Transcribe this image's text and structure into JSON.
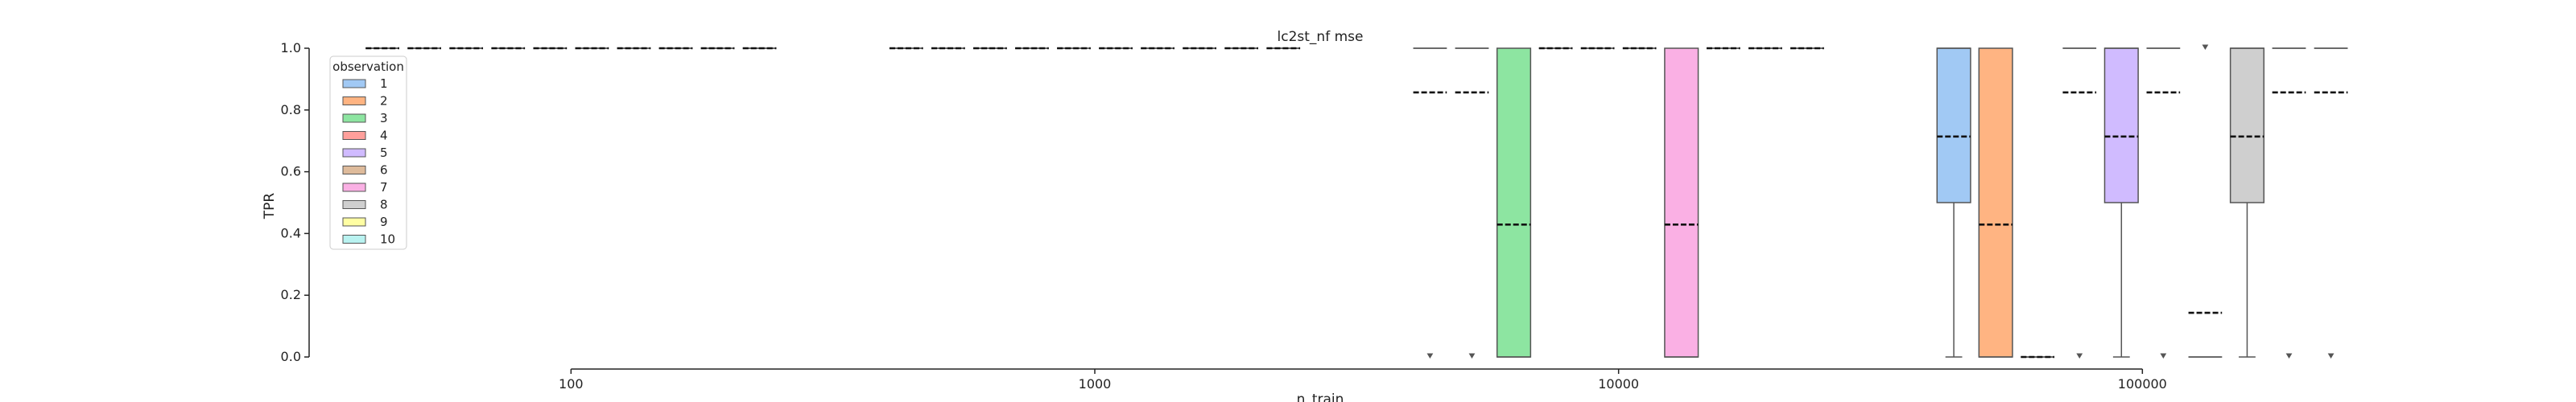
{
  "chart_data": {
    "type": "box",
    "title": "lc2st_nf mse",
    "xlabel": "n_train",
    "ylabel": "TPR",
    "xscale": "log",
    "xticks": [
      100,
      1000,
      10000,
      100000
    ],
    "xtick_labels": [
      "100",
      "1000",
      "10000",
      "100000"
    ],
    "ylim": [
      0.0,
      1.0
    ],
    "yticks": [
      0.0,
      0.2,
      0.4,
      0.6,
      0.8,
      1.0
    ],
    "ytick_labels": [
      "0.0",
      "0.2",
      "0.4",
      "0.6",
      "0.8",
      "1.0"
    ],
    "grid": false,
    "legend": {
      "title": "observation",
      "placement": "top-left",
      "entries": [
        "1",
        "2",
        "3",
        "4",
        "5",
        "6",
        "7",
        "8",
        "9",
        "10"
      ],
      "colors": [
        "#a1c9f4",
        "#ffb482",
        "#8de5a1",
        "#ff9f9b",
        "#d0bbff",
        "#debb9b",
        "#fab0e4",
        "#cfcfcf",
        "#fffea3",
        "#b9f2f0"
      ]
    },
    "boxes": [
      {
        "x": 100,
        "observation": "1",
        "q1": 1.0,
        "median": 1.0,
        "q3": 1.0,
        "whisker_low": 1.0,
        "whisker_high": 1.0,
        "mean": 1.0,
        "outliers": []
      },
      {
        "x": 100,
        "observation": "2",
        "q1": 1.0,
        "median": 1.0,
        "q3": 1.0,
        "whisker_low": 1.0,
        "whisker_high": 1.0,
        "mean": 1.0,
        "outliers": []
      },
      {
        "x": 100,
        "observation": "3",
        "q1": 1.0,
        "median": 1.0,
        "q3": 1.0,
        "whisker_low": 1.0,
        "whisker_high": 1.0,
        "mean": 1.0,
        "outliers": []
      },
      {
        "x": 100,
        "observation": "4",
        "q1": 1.0,
        "median": 1.0,
        "q3": 1.0,
        "whisker_low": 1.0,
        "whisker_high": 1.0,
        "mean": 1.0,
        "outliers": []
      },
      {
        "x": 100,
        "observation": "5",
        "q1": 1.0,
        "median": 1.0,
        "q3": 1.0,
        "whisker_low": 1.0,
        "whisker_high": 1.0,
        "mean": 1.0,
        "outliers": []
      },
      {
        "x": 100,
        "observation": "6",
        "q1": 1.0,
        "median": 1.0,
        "q3": 1.0,
        "whisker_low": 1.0,
        "whisker_high": 1.0,
        "mean": 1.0,
        "outliers": []
      },
      {
        "x": 100,
        "observation": "7",
        "q1": 1.0,
        "median": 1.0,
        "q3": 1.0,
        "whisker_low": 1.0,
        "whisker_high": 1.0,
        "mean": 1.0,
        "outliers": []
      },
      {
        "x": 100,
        "observation": "8",
        "q1": 1.0,
        "median": 1.0,
        "q3": 1.0,
        "whisker_low": 1.0,
        "whisker_high": 1.0,
        "mean": 1.0,
        "outliers": []
      },
      {
        "x": 100,
        "observation": "9",
        "q1": 1.0,
        "median": 1.0,
        "q3": 1.0,
        "whisker_low": 1.0,
        "whisker_high": 1.0,
        "mean": 1.0,
        "outliers": []
      },
      {
        "x": 100,
        "observation": "10",
        "q1": 1.0,
        "median": 1.0,
        "q3": 1.0,
        "whisker_low": 1.0,
        "whisker_high": 1.0,
        "mean": 1.0,
        "outliers": []
      },
      {
        "x": 1000,
        "observation": "1",
        "q1": 1.0,
        "median": 1.0,
        "q3": 1.0,
        "whisker_low": 1.0,
        "whisker_high": 1.0,
        "mean": 1.0,
        "outliers": []
      },
      {
        "x": 1000,
        "observation": "2",
        "q1": 1.0,
        "median": 1.0,
        "q3": 1.0,
        "whisker_low": 1.0,
        "whisker_high": 1.0,
        "mean": 1.0,
        "outliers": []
      },
      {
        "x": 1000,
        "observation": "3",
        "q1": 1.0,
        "median": 1.0,
        "q3": 1.0,
        "whisker_low": 1.0,
        "whisker_high": 1.0,
        "mean": 1.0,
        "outliers": []
      },
      {
        "x": 1000,
        "observation": "4",
        "q1": 1.0,
        "median": 1.0,
        "q3": 1.0,
        "whisker_low": 1.0,
        "whisker_high": 1.0,
        "mean": 1.0,
        "outliers": []
      },
      {
        "x": 1000,
        "observation": "5",
        "q1": 1.0,
        "median": 1.0,
        "q3": 1.0,
        "whisker_low": 1.0,
        "whisker_high": 1.0,
        "mean": 1.0,
        "outliers": []
      },
      {
        "x": 1000,
        "observation": "6",
        "q1": 1.0,
        "median": 1.0,
        "q3": 1.0,
        "whisker_low": 1.0,
        "whisker_high": 1.0,
        "mean": 1.0,
        "outliers": []
      },
      {
        "x": 1000,
        "observation": "7",
        "q1": 1.0,
        "median": 1.0,
        "q3": 1.0,
        "whisker_low": 1.0,
        "whisker_high": 1.0,
        "mean": 1.0,
        "outliers": []
      },
      {
        "x": 1000,
        "observation": "8",
        "q1": 1.0,
        "median": 1.0,
        "q3": 1.0,
        "whisker_low": 1.0,
        "whisker_high": 1.0,
        "mean": 1.0,
        "outliers": []
      },
      {
        "x": 1000,
        "observation": "9",
        "q1": 1.0,
        "median": 1.0,
        "q3": 1.0,
        "whisker_low": 1.0,
        "whisker_high": 1.0,
        "mean": 1.0,
        "outliers": []
      },
      {
        "x": 1000,
        "observation": "10",
        "q1": 1.0,
        "median": 1.0,
        "q3": 1.0,
        "whisker_low": 1.0,
        "whisker_high": 1.0,
        "mean": 1.0,
        "outliers": []
      },
      {
        "x": 10000,
        "observation": "1",
        "q1": 1.0,
        "median": 1.0,
        "q3": 1.0,
        "whisker_low": 1.0,
        "whisker_high": 1.0,
        "mean": 0.857,
        "outliers": [
          0.0
        ]
      },
      {
        "x": 10000,
        "observation": "2",
        "q1": 1.0,
        "median": 1.0,
        "q3": 1.0,
        "whisker_low": 1.0,
        "whisker_high": 1.0,
        "mean": 0.857,
        "outliers": [
          0.0
        ]
      },
      {
        "x": 10000,
        "observation": "3",
        "q1": 0.0,
        "median": 0.0,
        "q3": 1.0,
        "whisker_low": 0.0,
        "whisker_high": 1.0,
        "mean": 0.429,
        "outliers": []
      },
      {
        "x": 10000,
        "observation": "4",
        "q1": 1.0,
        "median": 1.0,
        "q3": 1.0,
        "whisker_low": 1.0,
        "whisker_high": 1.0,
        "mean": 1.0,
        "outliers": []
      },
      {
        "x": 10000,
        "observation": "5",
        "q1": 1.0,
        "median": 1.0,
        "q3": 1.0,
        "whisker_low": 1.0,
        "whisker_high": 1.0,
        "mean": 1.0,
        "outliers": []
      },
      {
        "x": 10000,
        "observation": "6",
        "q1": 1.0,
        "median": 1.0,
        "q3": 1.0,
        "whisker_low": 1.0,
        "whisker_high": 1.0,
        "mean": 1.0,
        "outliers": []
      },
      {
        "x": 10000,
        "observation": "7",
        "q1": 0.0,
        "median": 0.0,
        "q3": 1.0,
        "whisker_low": 0.0,
        "whisker_high": 1.0,
        "mean": 0.429,
        "outliers": []
      },
      {
        "x": 10000,
        "observation": "8",
        "q1": 1.0,
        "median": 1.0,
        "q3": 1.0,
        "whisker_low": 1.0,
        "whisker_high": 1.0,
        "mean": 1.0,
        "outliers": []
      },
      {
        "x": 10000,
        "observation": "9",
        "q1": 1.0,
        "median": 1.0,
        "q3": 1.0,
        "whisker_low": 1.0,
        "whisker_high": 1.0,
        "mean": 1.0,
        "outliers": []
      },
      {
        "x": 10000,
        "observation": "10",
        "q1": 1.0,
        "median": 1.0,
        "q3": 1.0,
        "whisker_low": 1.0,
        "whisker_high": 1.0,
        "mean": 1.0,
        "outliers": []
      },
      {
        "x": 100000,
        "observation": "1",
        "q1": 0.5,
        "median": 1.0,
        "q3": 1.0,
        "whisker_low": 0.0,
        "whisker_high": 1.0,
        "mean": 0.714,
        "outliers": []
      },
      {
        "x": 100000,
        "observation": "2",
        "q1": 0.0,
        "median": 0.0,
        "q3": 1.0,
        "whisker_low": 0.0,
        "whisker_high": 1.0,
        "mean": 0.429,
        "outliers": []
      },
      {
        "x": 100000,
        "observation": "3",
        "q1": 0.0,
        "median": 0.0,
        "q3": 0.0,
        "whisker_low": 0.0,
        "whisker_high": 0.0,
        "mean": 0.0,
        "outliers": []
      },
      {
        "x": 100000,
        "observation": "4",
        "q1": 1.0,
        "median": 1.0,
        "q3": 1.0,
        "whisker_low": 1.0,
        "whisker_high": 1.0,
        "mean": 0.857,
        "outliers": [
          0.0
        ]
      },
      {
        "x": 100000,
        "observation": "5",
        "q1": 0.5,
        "median": 1.0,
        "q3": 1.0,
        "whisker_low": 0.0,
        "whisker_high": 1.0,
        "mean": 0.714,
        "outliers": []
      },
      {
        "x": 100000,
        "observation": "6",
        "q1": 1.0,
        "median": 1.0,
        "q3": 1.0,
        "whisker_low": 1.0,
        "whisker_high": 1.0,
        "mean": 0.857,
        "outliers": [
          0.0
        ]
      },
      {
        "x": 100000,
        "observation": "7",
        "q1": 0.0,
        "median": 0.0,
        "q3": 0.0,
        "whisker_low": 0.0,
        "whisker_high": 0.0,
        "mean": 0.143,
        "outliers": [
          1.0
        ]
      },
      {
        "x": 100000,
        "observation": "8",
        "q1": 0.5,
        "median": 1.0,
        "q3": 1.0,
        "whisker_low": 0.0,
        "whisker_high": 1.0,
        "mean": 0.714,
        "outliers": []
      },
      {
        "x": 100000,
        "observation": "9",
        "q1": 1.0,
        "median": 1.0,
        "q3": 1.0,
        "whisker_low": 1.0,
        "whisker_high": 1.0,
        "mean": 0.857,
        "outliers": [
          0.0
        ]
      },
      {
        "x": 100000,
        "observation": "10",
        "q1": 1.0,
        "median": 1.0,
        "q3": 1.0,
        "whisker_low": 1.0,
        "whisker_high": 1.0,
        "mean": 0.857,
        "outliers": [
          0.0
        ]
      }
    ]
  }
}
